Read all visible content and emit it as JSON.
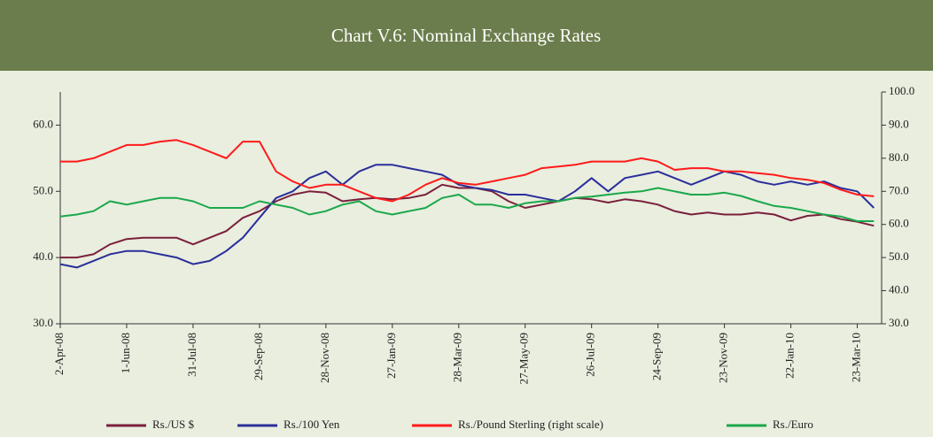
{
  "chart_data": {
    "type": "line",
    "title": "Chart V.6: Nominal Exchange Rates",
    "x": [
      "2-Apr-08",
      "17-Apr-08",
      "2-May-08",
      "17-May-08",
      "1-Jun-08",
      "16-Jun-08",
      "1-Jul-08",
      "16-Jul-08",
      "31-Jul-08",
      "15-Aug-08",
      "30-Aug-08",
      "14-Sep-08",
      "29-Sep-08",
      "14-Oct-08",
      "29-Oct-08",
      "13-Nov-08",
      "28-Nov-08",
      "13-Dec-08",
      "28-Dec-08",
      "12-Jan-09",
      "27-Jan-09",
      "11-Feb-09",
      "26-Feb-09",
      "13-Mar-09",
      "28-Mar-09",
      "12-Apr-09",
      "27-Apr-09",
      "12-May-09",
      "27-May-09",
      "11-Jun-09",
      "26-Jun-09",
      "11-Jul-09",
      "26-Jul-09",
      "10-Aug-09",
      "25-Aug-09",
      "9-Sep-09",
      "24-Sep-09",
      "9-Oct-09",
      "24-Oct-09",
      "8-Nov-09",
      "23-Nov-09",
      "8-Dec-09",
      "23-Dec-09",
      "7-Jan-10",
      "22-Jan-10",
      "6-Feb-10",
      "21-Feb-10",
      "8-Mar-10",
      "23-Mar-10",
      "7-Apr-10"
    ],
    "xlim": [
      "2-Apr-08",
      "14-Apr-10"
    ],
    "xticks": [
      "2-Apr-08",
      "1-Jun-08",
      "31-Jul-08",
      "29-Sep-08",
      "28-Nov-08",
      "27-Jan-09",
      "28-Mar-09",
      "27-May-09",
      "26-Jul-09",
      "24-Sep-09",
      "23-Nov-09",
      "22-Jan-10",
      "23-Mar-10"
    ],
    "ylim": [
      30,
      65
    ],
    "yticks": [
      {
        "value": 30,
        "label": "30.0"
      },
      {
        "value": 40,
        "label": "40.0"
      },
      {
        "value": 50,
        "label": "50.0"
      },
      {
        "value": 60,
        "label": "60.0"
      }
    ],
    "y2lim": [
      30,
      100
    ],
    "y2ticks": [
      {
        "value": 30,
        "label": "30.0"
      },
      {
        "value": 40,
        "label": "40.0"
      },
      {
        "value": 50,
        "label": "50.0"
      },
      {
        "value": 60,
        "label": "60.0"
      },
      {
        "value": 70,
        "label": "70.0"
      },
      {
        "value": 80,
        "label": "80.0"
      },
      {
        "value": 90,
        "label": "90.0"
      },
      {
        "value": 100,
        "label": "100.0"
      }
    ],
    "series": [
      {
        "name": "Rs./US $",
        "color": "#7b1f3c",
        "values": [
          40,
          40,
          40.5,
          42,
          42.8,
          43,
          43,
          43,
          42,
          43,
          44,
          46,
          47,
          48.5,
          49.5,
          50,
          49.8,
          48.5,
          48.8,
          49,
          48.8,
          49,
          49.5,
          51,
          50.5,
          50.5,
          50,
          48.5,
          47.5,
          48,
          48.5,
          49,
          48.8,
          48.3,
          48.8,
          48.5,
          48,
          47,
          46.5,
          46.8,
          46.5,
          46.5,
          46.8,
          46.5,
          45.6,
          46.3,
          46.5,
          45.8,
          45.4,
          44.8
        ]
      },
      {
        "name": "Rs./100 Yen",
        "color": "#2b2f9a",
        "values": [
          39,
          38.5,
          39.5,
          40.5,
          41,
          41,
          40.5,
          40,
          39,
          39.5,
          41,
          43,
          46,
          49,
          50,
          52,
          53,
          51,
          53,
          54,
          54,
          53.5,
          53,
          52.5,
          51,
          50.5,
          50.2,
          49.5,
          49.5,
          49,
          48.5,
          50,
          52,
          50,
          52,
          52.5,
          53,
          52,
          51,
          52,
          53,
          52.5,
          51.5,
          51,
          51.5,
          51,
          51.5,
          50.5,
          50,
          47.5
        ]
      },
      {
        "name": "Rs./Pound Sterling (right scale)",
        "color": "#ff1a1a",
        "axis": "y2",
        "values": [
          79,
          79,
          80,
          82,
          84,
          84,
          85,
          85.5,
          84,
          82,
          80,
          85,
          85,
          76,
          73,
          71,
          72,
          72,
          70,
          68,
          67,
          69,
          72,
          74,
          72.5,
          72,
          73,
          74,
          75,
          77,
          77.5,
          78,
          79,
          79,
          79,
          80,
          79,
          76.5,
          77,
          77,
          76,
          76,
          75.5,
          75,
          74,
          73.5,
          72.5,
          70.5,
          69,
          68.5
        ]
      },
      {
        "name": "Rs./Euro",
        "color": "#1aa84a",
        "values": [
          46.2,
          46.5,
          47,
          48.5,
          48,
          48.5,
          49,
          49,
          48.5,
          47.5,
          47.5,
          47.5,
          48.5,
          48,
          47.5,
          46.5,
          47,
          48,
          48.5,
          47,
          46.5,
          47,
          47.5,
          49,
          49.5,
          48,
          48,
          47.5,
          48.2,
          48.5,
          48.5,
          49,
          49.2,
          49.5,
          49.8,
          50,
          50.5,
          50,
          49.5,
          49.5,
          49.8,
          49.3,
          48.5,
          47.8,
          47.5,
          47,
          46.5,
          46.2,
          45.5,
          45.5
        ]
      }
    ]
  }
}
